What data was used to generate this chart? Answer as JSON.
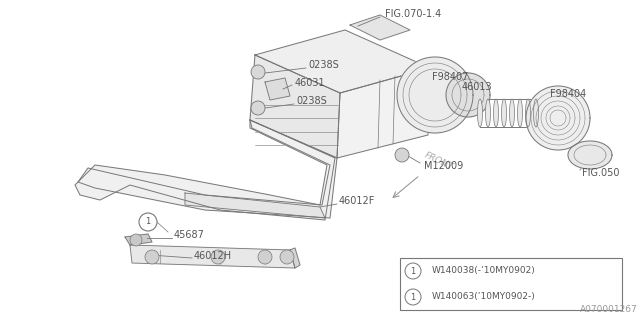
{
  "bg_color": "#ffffff",
  "line_color": "#777777",
  "text_color": "#555555",
  "fig_width": 6.4,
  "fig_height": 3.2,
  "dpi": 100,
  "watermark": "A070001267",
  "legend_items": [
    {
      "symbol": "1",
      "text": "W140038(-’10MY0902)"
    },
    {
      "symbol": "1",
      "text": "W140063(’10MY0902-)"
    }
  ]
}
